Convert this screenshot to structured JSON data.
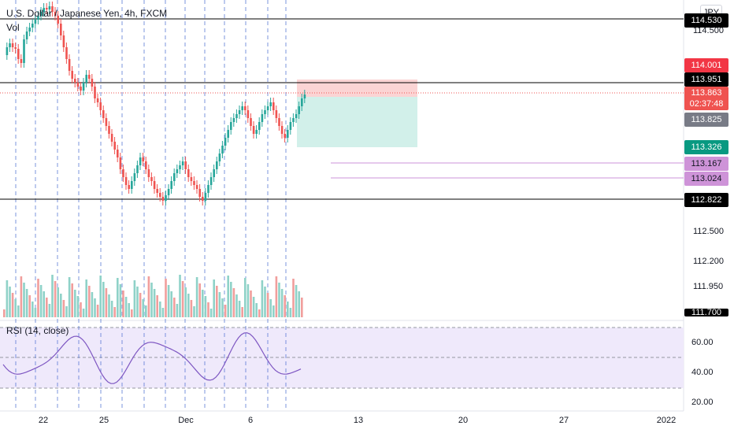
{
  "header": {
    "symbol_title": "U.S. Dollar / Japanese Yen, 4h, FXCM",
    "volume_label": "Vol",
    "currency_badge": "JPY"
  },
  "price_tags": {
    "top_line": "114.530",
    "stop": "114.001",
    "resistance": "113.951",
    "last_price": "113.863",
    "countdown": "02:37:48",
    "entry": "113.825",
    "target": "113.326",
    "level_1": "113.167",
    "level_2": "113.024",
    "support": "112.822",
    "bottom_cut": "111.700"
  },
  "price_axis": {
    "labels": [
      "114.500",
      "112.500",
      "112.200",
      "111.950"
    ]
  },
  "rsi": {
    "label": "RSI (14, close)",
    "axis_labels": [
      "60.00",
      "40.00",
      "20.00"
    ]
  },
  "time_axis": {
    "labels": [
      "22",
      "25",
      "Dec",
      "6",
      "13",
      "20",
      "27",
      "2022"
    ]
  },
  "colors": {
    "up": "#26a69a",
    "down": "#ef5350",
    "stop_zone": "#fbd4d4",
    "target_zone": "#d2f0ea",
    "rsi_line": "#7e57c2",
    "rsi_band": "#efe9fb",
    "level_line": "#ce93d8",
    "stop_tag": "#f23645",
    "last_tag": "#ef5350",
    "entry_tag": "#787b86",
    "target_tag": "#089981",
    "level_tag": "#ce93d8",
    "black_tag": "#000000"
  }
}
